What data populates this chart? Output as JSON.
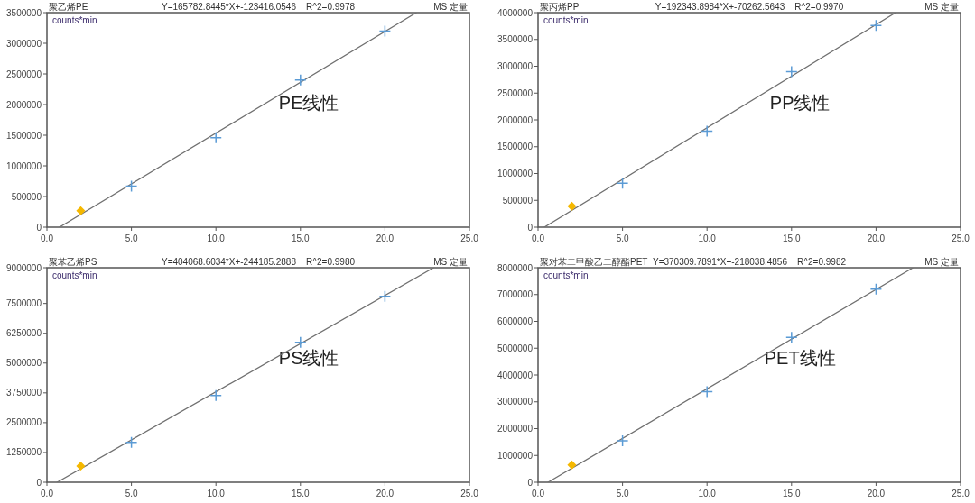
{
  "chart_data": [
    {
      "type": "scatter",
      "title": "聚乙烯PE",
      "subtitle": "Y=165782.8445*X+-123416.0546    R^2=0.9978",
      "ylabel": "counts*min",
      "annotations": [
        "MS 定量",
        "PE线性"
      ],
      "xlim": [
        0,
        25
      ],
      "xticks": [
        {
          "value": 0,
          "label": "0.0"
        },
        {
          "value": 5,
          "label": "5.0"
        },
        {
          "value": 10,
          "label": "10.0"
        },
        {
          "value": 15,
          "label": "15.0"
        },
        {
          "value": 20,
          "label": "20.0"
        },
        {
          "value": 25,
          "label": "25.0"
        }
      ],
      "ylim": [
        0,
        3500000
      ],
      "yticks": [
        0,
        500000,
        1000000,
        1500000,
        2000000,
        2500000,
        3000000,
        3500000
      ],
      "series": [
        {
          "type": "line",
          "color": "#707070",
          "x": [
            0.74,
            21.86
          ],
          "values": [
            0,
            3500000
          ]
        },
        {
          "type": "scatter",
          "marker": "cross",
          "color": "#5b9bd5",
          "x": [
            5,
            10,
            15,
            20
          ],
          "values": [
            670000,
            1460000,
            2400000,
            3200000
          ]
        },
        {
          "type": "scatter",
          "marker": "diamond",
          "color": "#f5b800",
          "x": [
            2
          ],
          "values": [
            270000
          ]
        }
      ]
    },
    {
      "type": "scatter",
      "title": "聚丙烯PP",
      "subtitle": "Y=192343.8984*X+-70262.5643    R^2=0.9970",
      "ylabel": "counts*min",
      "annotations": [
        "MS 定量",
        "PP线性"
      ],
      "xlim": [
        0,
        25
      ],
      "xticks": [
        {
          "value": 0,
          "label": "0.0"
        },
        {
          "value": 5,
          "label": "5.0"
        },
        {
          "value": 10,
          "label": "10.0"
        },
        {
          "value": 15,
          "label": "15.0"
        },
        {
          "value": 20,
          "label": "20.0"
        },
        {
          "value": 25,
          "label": "25.0"
        }
      ],
      "ylim": [
        0,
        4000000
      ],
      "yticks": [
        0,
        500000,
        1000000,
        1500000,
        2000000,
        2500000,
        3000000,
        3500000,
        4000000
      ],
      "series": [
        {
          "type": "line",
          "color": "#707070",
          "x": [
            0.37,
            21.16
          ],
          "values": [
            0,
            4000000
          ]
        },
        {
          "type": "scatter",
          "marker": "cross",
          "color": "#5b9bd5",
          "x": [
            5,
            10,
            15,
            20
          ],
          "values": [
            820000,
            1790000,
            2900000,
            3760000
          ]
        },
        {
          "type": "scatter",
          "marker": "diamond",
          "color": "#f5b800",
          "x": [
            2
          ],
          "values": [
            390000
          ]
        }
      ]
    },
    {
      "type": "scatter",
      "title": "聚苯乙烯PS",
      "subtitle": "Y=404068.6034*X+-244185.2888    R^2=0.9980",
      "ylabel": "counts*min",
      "annotations": [
        "MS 定量",
        "PS线性"
      ],
      "xlim": [
        0,
        25
      ],
      "xticks": [
        {
          "value": 0,
          "label": "0.0"
        },
        {
          "value": 5,
          "label": "5.0"
        },
        {
          "value": 10,
          "label": "10.0"
        },
        {
          "value": 15,
          "label": "15.0"
        },
        {
          "value": 20,
          "label": "20.0"
        },
        {
          "value": 25,
          "label": "25.0"
        }
      ],
      "ylim": [
        0,
        9000000
      ],
      "yticks": [
        0,
        1250000,
        2500000,
        3750000,
        5000000,
        6250000,
        7500000,
        9000000
      ],
      "series": [
        {
          "type": "line",
          "color": "#707070",
          "x": [
            0.6,
            22.88
          ],
          "values": [
            0,
            9000000
          ]
        },
        {
          "type": "scatter",
          "marker": "cross",
          "color": "#5b9bd5",
          "x": [
            5,
            10,
            15,
            20
          ],
          "values": [
            1670000,
            3640000,
            5870000,
            7800000
          ]
        },
        {
          "type": "scatter",
          "marker": "diamond",
          "color": "#f5b800",
          "x": [
            2
          ],
          "values": [
            680000
          ]
        }
      ]
    },
    {
      "type": "scatter",
      "title": "聚对苯二甲酸乙二醇酯PET",
      "subtitle": "Y=370309.7891*X+-218038.4856    R^2=0.9982",
      "ylabel": "counts*min",
      "annotations": [
        "MS 定量",
        "PET线性"
      ],
      "xlim": [
        0,
        25
      ],
      "xticks": [
        {
          "value": 0,
          "label": "0.0"
        },
        {
          "value": 5,
          "label": "5.0"
        },
        {
          "value": 10,
          "label": "10.0"
        },
        {
          "value": 15,
          "label": "15.0"
        },
        {
          "value": 20,
          "label": "20.0"
        },
        {
          "value": 25,
          "label": "25.0"
        }
      ],
      "ylim": [
        0,
        8000000
      ],
      "yticks": [
        0,
        1000000,
        2000000,
        3000000,
        4000000,
        5000000,
        6000000,
        7000000,
        8000000
      ],
      "series": [
        {
          "type": "line",
          "color": "#707070",
          "x": [
            0.59,
            22.19
          ],
          "values": [
            0,
            8000000
          ]
        },
        {
          "type": "scatter",
          "marker": "cross",
          "color": "#5b9bd5",
          "x": [
            5,
            10,
            15,
            20
          ],
          "values": [
            1550000,
            3380000,
            5400000,
            7200000
          ]
        },
        {
          "type": "scatter",
          "marker": "diamond",
          "color": "#f5b800",
          "x": [
            2
          ],
          "values": [
            650000
          ]
        }
      ]
    }
  ]
}
